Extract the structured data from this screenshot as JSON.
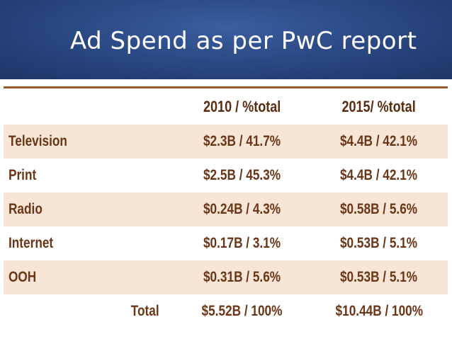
{
  "slide": {
    "title": "Ad Spend as per PwC report"
  },
  "table": {
    "headers": {
      "category": "",
      "col2010": "2010 / %total",
      "col2015": "2015/ %total"
    },
    "rows": [
      {
        "label": "Television",
        "v2010": "$2.3B / 41.7%",
        "v2015": "$4.4B / 42.1%"
      },
      {
        "label": "Print",
        "v2010": "$2.5B / 45.3%",
        "v2015": "$4.4B / 42.1%"
      },
      {
        "label": "Radio",
        "v2010": "$0.24B / 4.3%",
        "v2015": "$0.58B / 5.6%"
      },
      {
        "label": "Internet",
        "v2010": "$0.17B / 3.1%",
        "v2015": "$0.53B / 5.1%"
      },
      {
        "label": "OOH",
        "v2010": "$0.31B / 5.6%",
        "v2015": "$0.53B / 5.1%"
      }
    ],
    "total": {
      "label": "Total",
      "v2010": "$5.52B / 100%",
      "v2015": "$10.44B / 100%"
    }
  },
  "colors": {
    "header_bg": "#2b4a85",
    "title_text": "#ffffff",
    "table_text": "#6b3617",
    "row_shade": "#f7e6d6",
    "rule": "#9b5a2c"
  }
}
